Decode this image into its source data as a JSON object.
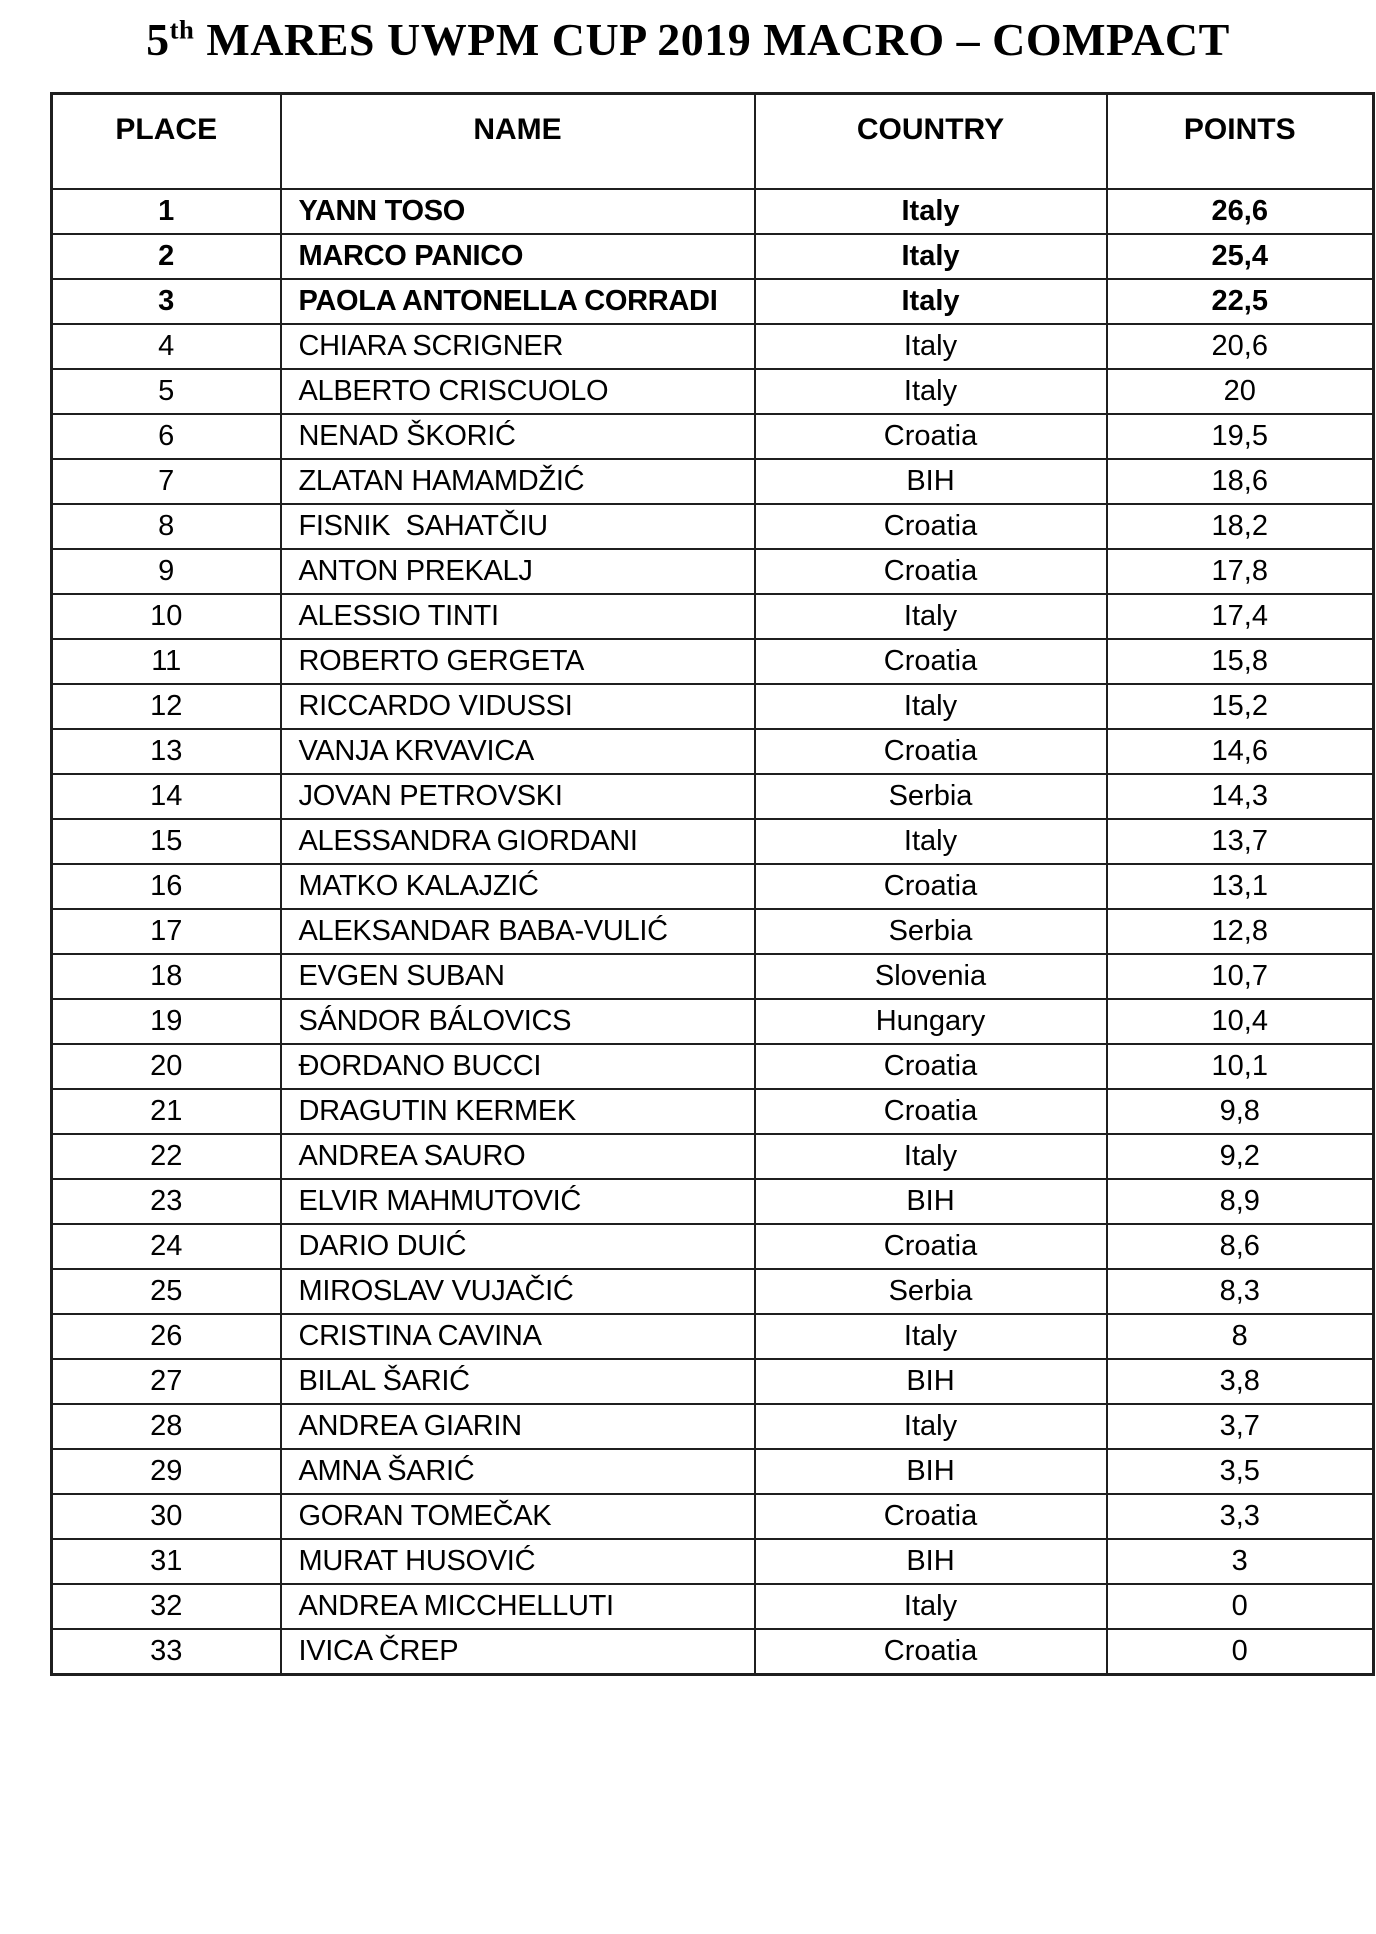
{
  "title": {
    "number": "5",
    "ordinal": "th",
    "rest": " MARES UWPM CUP 2019 MACRO – COMPACT"
  },
  "colors": {
    "text": "#000000",
    "background": "#ffffff",
    "grid": "#1f1f1f"
  },
  "table": {
    "headers": [
      "PLACE",
      "NAME",
      "COUNTRY",
      "POINTS"
    ],
    "rows": [
      {
        "place": "1",
        "name": "YANN TOSO",
        "country": "Italy",
        "points": "26,6",
        "bold": true
      },
      {
        "place": "2",
        "name": "MARCO PANICO",
        "country": "Italy",
        "points": "25,4",
        "bold": true
      },
      {
        "place": "3",
        "name": "PAOLA ANTONELLA CORRADI",
        "country": "Italy",
        "points": "22,5",
        "bold": true
      },
      {
        "place": "4",
        "name": "CHIARA SCRIGNER",
        "country": "Italy",
        "points": "20,6",
        "bold": false
      },
      {
        "place": "5",
        "name": "ALBERTO CRISCUOLO",
        "country": "Italy",
        "points": "20",
        "bold": false
      },
      {
        "place": "6",
        "name": "NENAD ŠKORIĆ",
        "country": "Croatia",
        "points": "19,5",
        "bold": false
      },
      {
        "place": "7",
        "name": "ZLATAN HAMAMDŽIĆ",
        "country": "BIH",
        "points": "18,6",
        "bold": false
      },
      {
        "place": "8",
        "name": "FISNIK  SAHATČIU",
        "country": "Croatia",
        "points": "18,2",
        "bold": false
      },
      {
        "place": "9",
        "name": "ANTON PREKALJ",
        "country": "Croatia",
        "points": "17,8",
        "bold": false
      },
      {
        "place": "10",
        "name": "ALESSIO TINTI",
        "country": "Italy",
        "points": "17,4",
        "bold": false
      },
      {
        "place": "11",
        "name": "ROBERTO GERGETA",
        "country": "Croatia",
        "points": "15,8",
        "bold": false
      },
      {
        "place": "12",
        "name": "RICCARDO VIDUSSI",
        "country": "Italy",
        "points": "15,2",
        "bold": false
      },
      {
        "place": "13",
        "name": "VANJA KRVAVICA",
        "country": "Croatia",
        "points": "14,6",
        "bold": false
      },
      {
        "place": "14",
        "name": "JOVAN PETROVSKI",
        "country": "Serbia",
        "points": "14,3",
        "bold": false
      },
      {
        "place": "15",
        "name": "ALESSANDRA GIORDANI",
        "country": "Italy",
        "points": "13,7",
        "bold": false
      },
      {
        "place": "16",
        "name": "MATKO KALAJZIĆ",
        "country": "Croatia",
        "points": "13,1",
        "bold": false
      },
      {
        "place": "17",
        "name": "ALEKSANDAR BABA-VULIĆ",
        "country": "Serbia",
        "points": "12,8",
        "bold": false
      },
      {
        "place": "18",
        "name": "EVGEN SUBAN",
        "country": "Slovenia",
        "points": "10,7",
        "bold": false
      },
      {
        "place": "19",
        "name": "SÁNDOR BÁLOVICS",
        "country": "Hungary",
        "points": "10,4",
        "bold": false
      },
      {
        "place": "20",
        "name": "ĐORDANO BUCCI",
        "country": "Croatia",
        "points": "10,1",
        "bold": false
      },
      {
        "place": "21",
        "name": "DRAGUTIN KERMEK",
        "country": "Croatia",
        "points": "9,8",
        "bold": false
      },
      {
        "place": "22",
        "name": "ANDREA SAURO",
        "country": "Italy",
        "points": "9,2",
        "bold": false
      },
      {
        "place": "23",
        "name": "ELVIR MAHMUTOVIĆ",
        "country": "BIH",
        "points": "8,9",
        "bold": false
      },
      {
        "place": "24",
        "name": "DARIO DUIĆ",
        "country": "Croatia",
        "points": "8,6",
        "bold": false
      },
      {
        "place": "25",
        "name": "MIROSLAV VUJAČIĆ",
        "country": "Serbia",
        "points": "8,3",
        "bold": false
      },
      {
        "place": "26",
        "name": "CRISTINA CAVINA",
        "country": "Italy",
        "points": "8",
        "bold": false
      },
      {
        "place": "27",
        "name": "BILAL ŠARIĆ",
        "country": "BIH",
        "points": "3,8",
        "bold": false
      },
      {
        "place": "28",
        "name": "ANDREA GIARIN",
        "country": "Italy",
        "points": "3,7",
        "bold": false
      },
      {
        "place": "29",
        "name": "AMNA ŠARIĆ",
        "country": "BIH",
        "points": "3,5",
        "bold": false
      },
      {
        "place": "30",
        "name": "GORAN TOMEČAK",
        "country": "Croatia",
        "points": "3,3",
        "bold": false
      },
      {
        "place": "31",
        "name": "MURAT HUSOVIĆ",
        "country": "BIH",
        "points": "3",
        "bold": false
      },
      {
        "place": "32",
        "name": "ANDREA MICCHELLUTI",
        "country": "Italy",
        "points": "0",
        "bold": false
      },
      {
        "place": "33",
        "name": "IVICA ČREP",
        "country": "Croatia",
        "points": "0",
        "bold": false
      }
    ]
  }
}
